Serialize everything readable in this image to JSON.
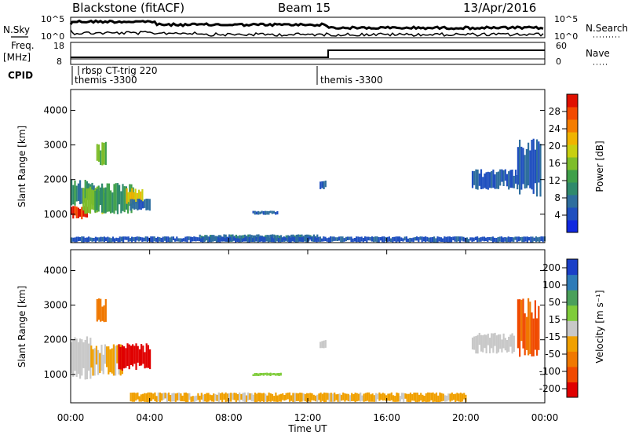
{
  "header": {
    "station": "Blackstone (fitACF)",
    "beam": "Beam 15",
    "date": "13/Apr/2016"
  },
  "top_panels": {
    "nsky_label": "N.Sky",
    "nsearch_label": "N.Search",
    "nsky_ticks": [
      "10^5",
      "10^0"
    ],
    "nsearch_ticks": [
      "10^5",
      "10^0"
    ],
    "freq_label_line1": "Freq.",
    "freq_label_line2": "[MHz]",
    "freq_ticks": [
      "18",
      "8"
    ],
    "nave_label": "Nave",
    "nave_ticks": [
      "60",
      "0"
    ],
    "cpid_label": "CPID",
    "cpid_entries": [
      "rbsp CT-trig 220",
      "themis -3300",
      "themis -3300"
    ]
  },
  "chart_data": [
    {
      "type": "heatmap",
      "title": "",
      "xlabel": "",
      "ylabel": "Slant Range [km]",
      "xlim": [
        0,
        24
      ],
      "ylim": [
        180,
        4600
      ],
      "yticks": [
        "1000",
        "2000",
        "3000",
        "4000"
      ],
      "colorbar": {
        "label": "Power [dB]",
        "ticks": [
          "4",
          "8",
          "12",
          "16",
          "20",
          "24",
          "28"
        ],
        "range": [
          0,
          32
        ],
        "colors": [
          "#1028e0",
          "#1f4fbf",
          "#2e6e9e",
          "#2f8a6c",
          "#3fa04a",
          "#7ebd2a",
          "#c8cf10",
          "#f0b400",
          "#f57d00",
          "#f34a00",
          "#e01000"
        ]
      },
      "regions": [
        {
          "t": [
            0.0,
            0.8
          ],
          "r": [
            850,
            1250
          ],
          "value": 29
        },
        {
          "t": [
            0.0,
            1.2
          ],
          "r": [
            1250,
            2000
          ],
          "value": 10
        },
        {
          "t": [
            0.6,
            1.8
          ],
          "r": [
            1000,
            1800
          ],
          "value": 17
        },
        {
          "t": [
            1.2,
            3.2
          ],
          "r": [
            1000,
            1900
          ],
          "value": 12
        },
        {
          "t": [
            2.8,
            3.6
          ],
          "r": [
            1300,
            1750
          ],
          "value": 20
        },
        {
          "t": [
            3.0,
            4.0
          ],
          "r": [
            1100,
            1450
          ],
          "value": 6
        },
        {
          "t": [
            1.3,
            1.8
          ],
          "r": [
            2400,
            3100
          ],
          "value": 15
        },
        {
          "t": [
            9.2,
            10.5
          ],
          "r": [
            980,
            1100
          ],
          "value": 6
        },
        {
          "t": [
            12.6,
            12.9
          ],
          "r": [
            1700,
            2000
          ],
          "value": 6
        },
        {
          "t": [
            20.3,
            22.6
          ],
          "r": [
            1700,
            2300
          ],
          "value": 6
        },
        {
          "t": [
            22.6,
            23.8
          ],
          "r": [
            1500,
            3200
          ],
          "value": 5
        },
        {
          "t": [
            6.5,
            12.5
          ],
          "r": [
            200,
            420
          ],
          "value": 8
        },
        {
          "t": [
            0.0,
            24.0
          ],
          "r": [
            190,
            360
          ],
          "value": 5
        }
      ]
    },
    {
      "type": "heatmap",
      "title": "",
      "xlabel": "Time UT",
      "ylabel": "Slant Range [km]",
      "xlim": [
        0,
        24
      ],
      "ylim": [
        180,
        4600
      ],
      "yticks": [
        "1000",
        "2000",
        "3000",
        "4000"
      ],
      "xticks": [
        "00:00",
        "04:00",
        "08:00",
        "12:00",
        "16:00",
        "20:00",
        "00:00"
      ],
      "colorbar": {
        "label": "Velocity [m s⁻¹]",
        "ticks": [
          "200",
          "100",
          "50",
          "15",
          "-15",
          "-50",
          "-100",
          "-200"
        ],
        "range": [
          -250,
          250
        ],
        "colors": [
          "#1a3fc8",
          "#2e7bb8",
          "#4aa05a",
          "#7fcc3a",
          "#c8c8c8",
          "#f0a000",
          "#f07800",
          "#f04a00",
          "#e00000"
        ]
      },
      "regions": [
        {
          "t": [
            0.0,
            1.0
          ],
          "r": [
            850,
            2100
          ],
          "value": 0
        },
        {
          "t": [
            1.0,
            2.6
          ],
          "r": [
            950,
            1900
          ],
          "value": -30
        },
        {
          "t": [
            2.4,
            4.0
          ],
          "r": [
            1100,
            1900
          ],
          "value": -220
        },
        {
          "t": [
            1.3,
            1.8
          ],
          "r": [
            2500,
            3200
          ],
          "value": -120
        },
        {
          "t": [
            9.2,
            10.6
          ],
          "r": [
            950,
            1050
          ],
          "value": 60
        },
        {
          "t": [
            12.6,
            12.9
          ],
          "r": [
            1750,
            2000
          ],
          "value": 0
        },
        {
          "t": [
            20.3,
            22.4
          ],
          "r": [
            1600,
            2200
          ],
          "value": 0
        },
        {
          "t": [
            22.6,
            23.7
          ],
          "r": [
            1500,
            3200
          ],
          "value": -150
        },
        {
          "t": [
            3.0,
            20.0
          ],
          "r": [
            200,
            480
          ],
          "value": -40
        }
      ]
    }
  ]
}
